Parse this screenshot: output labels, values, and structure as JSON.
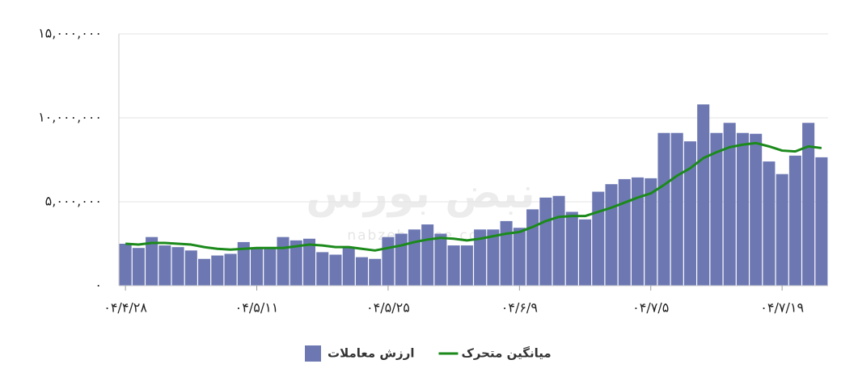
{
  "chart_data": {
    "type": "bar_line",
    "watermark": [
      "نبض بورس",
      "nabzebourse.com"
    ],
    "categories": [
      "۰۴/۴/۲۸",
      null,
      null,
      null,
      null,
      null,
      null,
      null,
      null,
      null,
      "۰۴/۵/۱۱",
      null,
      null,
      null,
      null,
      null,
      null,
      null,
      null,
      null,
      "۰۴/۵/۲۵",
      null,
      null,
      null,
      null,
      null,
      null,
      null,
      null,
      null,
      "۰۴/۶/۹",
      null,
      null,
      null,
      null,
      null,
      null,
      null,
      null,
      null,
      "۰۴/۷/۵",
      null,
      null,
      null,
      null,
      null,
      null,
      null,
      null,
      null,
      "۰۴/۷/۱۹",
      null,
      null,
      null
    ],
    "series": [
      {
        "name": "ارزش معاملات",
        "type": "bar",
        "color": "#6d78b3",
        "values": [
          2500000,
          2250000,
          2900000,
          2400000,
          2300000,
          2100000,
          1600000,
          1800000,
          1900000,
          2600000,
          2200000,
          2300000,
          2900000,
          2700000,
          2800000,
          2000000,
          1850000,
          2300000,
          1700000,
          1600000,
          2900000,
          3100000,
          3350000,
          3650000,
          3100000,
          2400000,
          2400000,
          3350000,
          3350000,
          3850000,
          3450000,
          4550000,
          5250000,
          5350000,
          4400000,
          3950000,
          5600000,
          6050000,
          6350000,
          6450000,
          6400000,
          9100000,
          9100000,
          8600000,
          10800000,
          9100000,
          9700000,
          9100000,
          9050000,
          7400000,
          6650000,
          7750000,
          9700000,
          7650000
        ]
      },
      {
        "name": "میانگین متحرک",
        "type": "line",
        "color": "#1b8a1b",
        "values": [
          2500000,
          2450000,
          2550000,
          2550000,
          2500000,
          2450000,
          2300000,
          2200000,
          2150000,
          2200000,
          2250000,
          2250000,
          2250000,
          2350000,
          2450000,
          2400000,
          2300000,
          2300000,
          2200000,
          2100000,
          2250000,
          2400000,
          2600000,
          2750000,
          2850000,
          2800000,
          2700000,
          2800000,
          2950000,
          3100000,
          3200000,
          3500000,
          3850000,
          4100000,
          4150000,
          4150000,
          4400000,
          4650000,
          4950000,
          5250000,
          5500000,
          6000000,
          6550000,
          7000000,
          7600000,
          7950000,
          8250000,
          8400000,
          8500000,
          8300000,
          8050000,
          8000000,
          8300000,
          8200000
        ]
      }
    ],
    "ylim": [
      0,
      15000000
    ],
    "yticks": [
      {
        "value": 0,
        "label": "۰"
      },
      {
        "value": 5000000,
        "label": "۵,۰۰۰,۰۰۰"
      },
      {
        "value": 10000000,
        "label": "۱۰,۰۰۰,۰۰۰"
      },
      {
        "value": 15000000,
        "label": "۱۵,۰۰۰,۰۰۰"
      }
    ],
    "grid": true,
    "legend": "bottom"
  }
}
